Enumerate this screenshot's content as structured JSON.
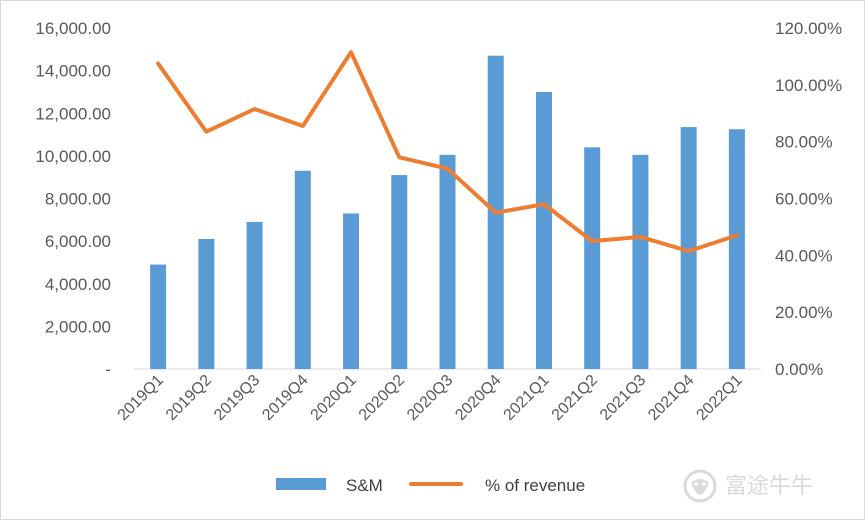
{
  "chart_data": {
    "type": "bar+line",
    "categories": [
      "2019Q1",
      "2019Q2",
      "2019Q3",
      "2019Q4",
      "2020Q1",
      "2020Q2",
      "2020Q3",
      "2020Q4",
      "2021Q1",
      "2021Q2",
      "2021Q3",
      "2021Q4",
      "2022Q1"
    ],
    "series": [
      {
        "name": "S&M",
        "type": "bar",
        "axis": "left",
        "color": "#5b9bd5",
        "values": [
          4900,
          6100,
          6900,
          9300,
          7300,
          9100,
          10050,
          14700,
          13000,
          10400,
          10050,
          11350,
          11250
        ]
      },
      {
        "name": "% of revenue",
        "type": "line",
        "axis": "right",
        "color": "#ed7d31",
        "values": [
          107.5,
          83.5,
          91.5,
          85.5,
          111.5,
          74.5,
          70.5,
          55.0,
          58.0,
          45.0,
          46.5,
          41.5,
          47.0
        ]
      }
    ],
    "y_left": {
      "lim": [
        0,
        16000
      ],
      "ticks": [
        0,
        2000,
        4000,
        6000,
        8000,
        10000,
        12000,
        14000,
        16000
      ],
      "tick_labels": [
        "-",
        "2,000.00",
        "4,000.00",
        "6,000.00",
        "8,000.00",
        "10,000.00",
        "12,000.00",
        "14,000.00",
        "16,000.00"
      ]
    },
    "y_right": {
      "lim": [
        0,
        120
      ],
      "ticks": [
        0,
        20,
        40,
        60,
        80,
        100,
        120
      ],
      "tick_labels": [
        "0.00%",
        "20.00%",
        "40.00%",
        "60.00%",
        "80.00%",
        "100.00%",
        "120.00%"
      ]
    },
    "grid": false,
    "legend": "bottom-center",
    "title": "",
    "xlabel": "",
    "ylabel": ""
  },
  "watermark": {
    "text": "富途牛牛",
    "icon": "futu-bull-logo-icon"
  }
}
